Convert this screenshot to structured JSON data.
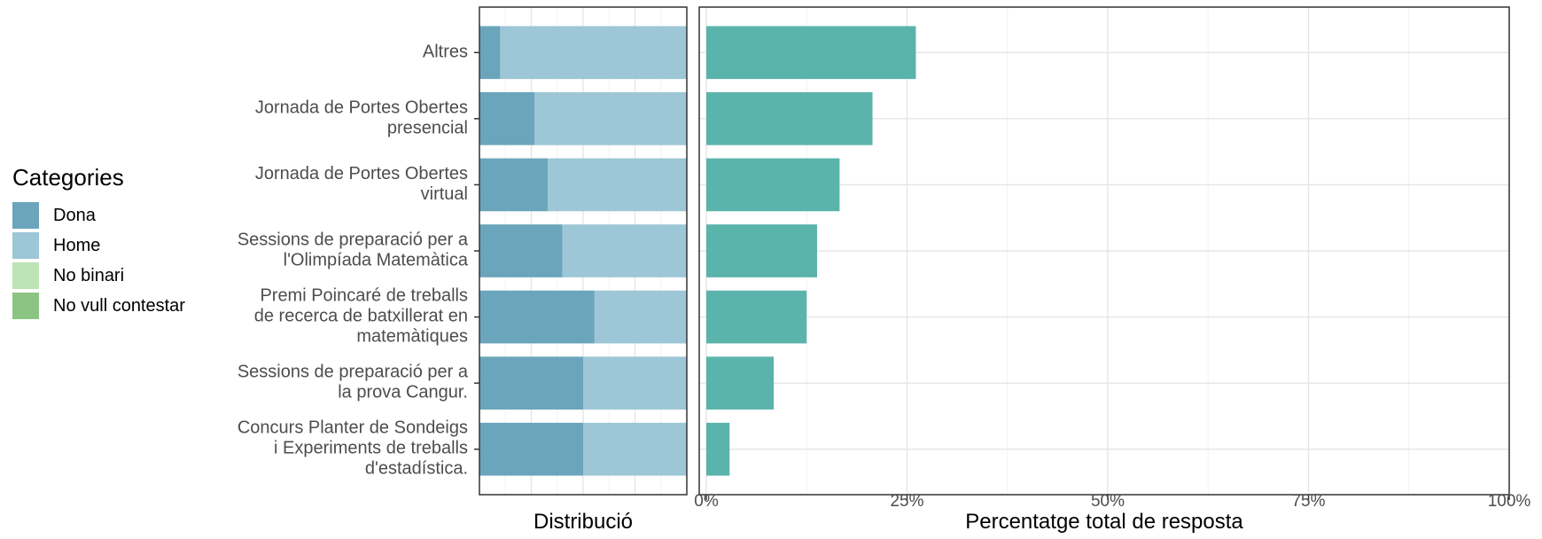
{
  "legend": {
    "title": "Categories",
    "items": [
      {
        "label": "Dona",
        "color": "#6BA5BB"
      },
      {
        "label": "Home",
        "color": "#9DC6D6"
      },
      {
        "label": "No binari",
        "color": "#BCE4B5"
      },
      {
        "label": "No vull contestar",
        "color": "#8CC583"
      }
    ]
  },
  "chart_data": [
    {
      "type": "bar",
      "orientation": "horizontal",
      "stacked": true,
      "normalized": true,
      "xlabel": "Distribució",
      "categories": [
        [
          "Altres"
        ],
        [
          "Jornada de Portes Obertes",
          "presencial"
        ],
        [
          "Jornada de Portes Obertes",
          "virtual"
        ],
        [
          "Sessions de preparació per a",
          "l'Olimpíada Matemàtica"
        ],
        [
          "Premi Poincaré de treballs",
          "de recerca de batxillerat en",
          "matemàtiques"
        ],
        [
          "Sessions de preparació per a",
          "la prova Cangur."
        ],
        [
          "Concurs Planter de Sondeigs",
          "i Experiments de treballs",
          "d'estadística."
        ]
      ],
      "series": [
        {
          "name": "Dona",
          "color": "#6BA5BB",
          "values": [
            0.1,
            0.265,
            0.33,
            0.4,
            0.555,
            0.5,
            0.5
          ]
        },
        {
          "name": "Home",
          "color": "#9DC6D6",
          "values": [
            0.9,
            0.735,
            0.67,
            0.6,
            0.445,
            0.5,
            0.5
          ]
        },
        {
          "name": "No binari",
          "color": "#BCE4B5",
          "values": [
            0,
            0,
            0,
            0,
            0,
            0,
            0
          ]
        },
        {
          "name": "No vull contestar",
          "color": "#8CC583",
          "values": [
            0,
            0,
            0,
            0,
            0,
            0,
            0
          ]
        }
      ],
      "grid": true
    },
    {
      "type": "bar",
      "orientation": "horizontal",
      "xlabel": "Percentatge total de resposta",
      "xlim": [
        0,
        100
      ],
      "xticks": [
        "0%",
        "25%",
        "50%",
        "75%",
        "100%"
      ],
      "bar_color": "#5BB4AB",
      "categories": [
        "Altres",
        "Jornada de Portes Obertes presencial",
        "Jornada de Portes Obertes virtual",
        "Sessions de preparació per a l'Olimpíada Matemàtica",
        "Premi Poincaré de treballs de recerca de batxillerat en matemàtiques",
        "Sessions de preparació per a la prova Cangur.",
        "Concurs Planter de Sondeigs i Experiments de treballs d'estadística."
      ],
      "values": [
        26.1,
        20.7,
        16.6,
        13.8,
        12.5,
        8.4,
        2.9
      ],
      "grid": true
    }
  ]
}
